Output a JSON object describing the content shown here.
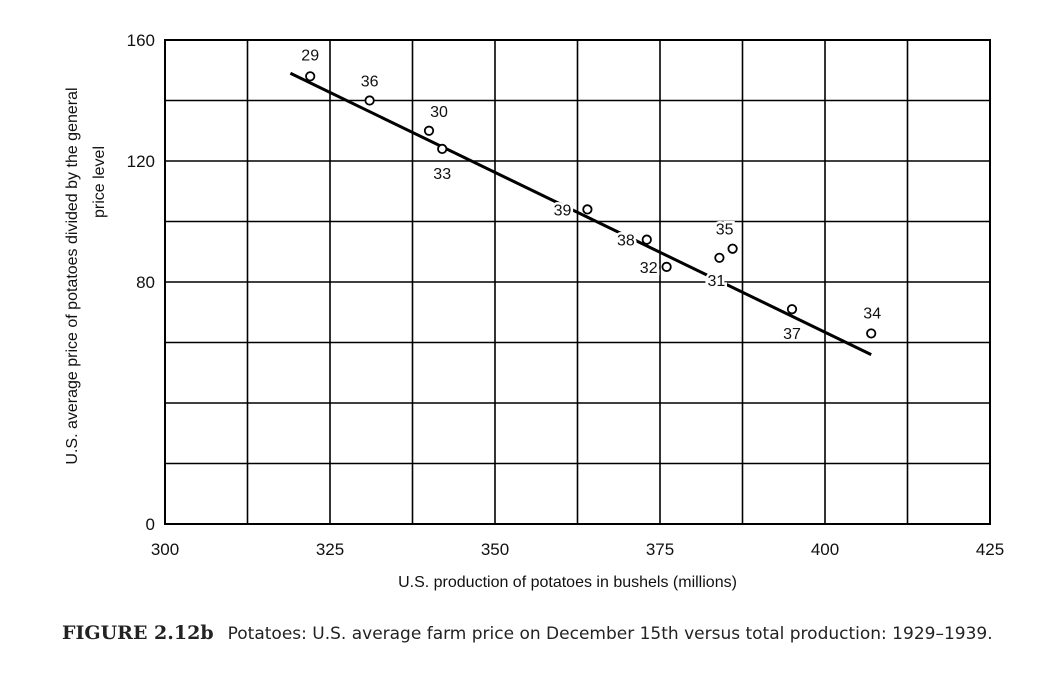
{
  "chart_data": {
    "type": "scatter",
    "xlabel": "U.S. production of potatoes in bushels (millions)",
    "ylabel_lines": [
      "U.S. average price of potatoes divided by the general",
      "price level"
    ],
    "xlim": [
      300,
      425
    ],
    "ylim": [
      0,
      160
    ],
    "x_ticks": [
      "300",
      "325",
      "350",
      "375",
      "400",
      "425"
    ],
    "y_ticks": [
      "0",
      "80",
      "120",
      "160"
    ],
    "grid": true,
    "series": [
      {
        "points": [
          {
            "label": "29",
            "x": 322,
            "y": 148
          },
          {
            "label": "36",
            "x": 331,
            "y": 140
          },
          {
            "label": "30",
            "x": 340,
            "y": 130
          },
          {
            "label": "33",
            "x": 342,
            "y": 124
          },
          {
            "label": "39",
            "x": 364,
            "y": 104
          },
          {
            "label": "38",
            "x": 373,
            "y": 94
          },
          {
            "label": "35",
            "x": 386,
            "y": 91
          },
          {
            "label": "31",
            "x": 384,
            "y": 88
          },
          {
            "label": "32",
            "x": 376,
            "y": 85
          },
          {
            "label": "37",
            "x": 395,
            "y": 71
          },
          {
            "label": "34",
            "x": 407,
            "y": 63
          }
        ]
      }
    ],
    "fit_line": {
      "x": [
        319,
        407
      ],
      "y": [
        149,
        56
      ]
    }
  },
  "caption": {
    "figure_number": "FIGURE 2.12b",
    "text": "Potatoes: U.S. average farm price on December 15th versus total production: 1929–1939."
  }
}
